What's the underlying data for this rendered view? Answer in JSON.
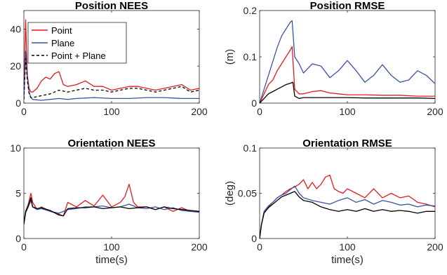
{
  "chart_data": [
    {
      "type": "line",
      "title": "Position NEES",
      "xlabel": "",
      "ylabel": "",
      "xlim": [
        0,
        200
      ],
      "ylim": [
        0,
        50
      ],
      "xticks": [
        0,
        100,
        200
      ],
      "yticks": [
        0,
        20,
        40
      ],
      "legend": {
        "placement": "top-left",
        "entries": [
          "Point",
          "Plane",
          "Point + Plane"
        ]
      },
      "series": [
        {
          "name": "Point",
          "color": "#e41a1c",
          "dash": "solid",
          "x": [
            0,
            2,
            4,
            6,
            8,
            10,
            15,
            20,
            25,
            30,
            35,
            40,
            45,
            50,
            60,
            70,
            80,
            90,
            100,
            110,
            120,
            130,
            140,
            150,
            160,
            170,
            180,
            190,
            200
          ],
          "y": [
            3,
            45,
            15,
            8,
            6,
            6,
            8,
            12,
            14,
            13,
            16,
            17,
            10,
            9,
            10,
            12,
            9,
            9,
            7,
            8,
            9,
            9,
            8,
            7,
            8,
            9,
            10,
            7,
            8
          ]
        },
        {
          "name": "Plane",
          "color": "#3953a4",
          "dash": "solid",
          "x": [
            0,
            2,
            4,
            6,
            8,
            10,
            20,
            30,
            40,
            50,
            60,
            80,
            100,
            120,
            140,
            160,
            180,
            200
          ],
          "y": [
            2,
            28,
            14,
            6,
            3,
            2,
            1.5,
            2,
            2.5,
            2,
            2.5,
            3,
            2.5,
            2.5,
            3,
            3,
            2.5,
            2.5
          ]
        },
        {
          "name": "Point + Plane",
          "color": "#000000",
          "dash": "dashed",
          "x": [
            0,
            2,
            4,
            6,
            8,
            10,
            20,
            30,
            40,
            50,
            60,
            70,
            80,
            90,
            100,
            110,
            120,
            130,
            140,
            150,
            160,
            170,
            180,
            190,
            200
          ],
          "y": [
            2,
            24,
            12,
            5,
            3,
            3,
            4,
            5,
            7,
            6,
            7,
            8,
            7,
            7,
            6,
            7,
            8,
            8,
            7,
            6,
            7,
            8,
            9,
            6,
            7
          ]
        }
      ]
    },
    {
      "type": "line",
      "title": "Position RMSE",
      "xlabel": "",
      "ylabel": "(m)",
      "xlim": [
        0,
        200
      ],
      "ylim": [
        0,
        0.2
      ],
      "xticks": [
        0,
        100,
        200
      ],
      "yticks": [
        0,
        0.1,
        0.2
      ],
      "series": [
        {
          "name": "Point",
          "color": "#e41a1c",
          "dash": "solid",
          "x": [
            0,
            5,
            10,
            15,
            20,
            25,
            30,
            35,
            37,
            40,
            45,
            50,
            60,
            70,
            80,
            90,
            100,
            120,
            140,
            160,
            180,
            200
          ],
          "y": [
            0,
            0.02,
            0.04,
            0.05,
            0.07,
            0.085,
            0.1,
            0.115,
            0.122,
            0.03,
            0.02,
            0.02,
            0.025,
            0.027,
            0.022,
            0.02,
            0.018,
            0.018,
            0.017,
            0.017,
            0.015,
            0.015
          ]
        },
        {
          "name": "Plane",
          "color": "#3953a4",
          "dash": "solid",
          "x": [
            0,
            5,
            10,
            15,
            20,
            25,
            30,
            35,
            37,
            40,
            45,
            50,
            60,
            70,
            80,
            90,
            100,
            110,
            120,
            130,
            140,
            150,
            160,
            170,
            180,
            190,
            200
          ],
          "y": [
            0,
            0.03,
            0.06,
            0.09,
            0.12,
            0.145,
            0.16,
            0.175,
            0.178,
            0.1,
            0.085,
            0.065,
            0.085,
            0.08,
            0.055,
            0.07,
            0.092,
            0.07,
            0.045,
            0.06,
            0.083,
            0.06,
            0.045,
            0.05,
            0.07,
            0.06,
            0.042
          ]
        },
        {
          "name": "Point + Plane",
          "color": "#000000",
          "dash": "solid",
          "x": [
            0,
            5,
            10,
            15,
            20,
            25,
            30,
            35,
            38,
            40,
            45,
            50,
            60,
            80,
            100,
            120,
            140,
            160,
            180,
            200
          ],
          "y": [
            0,
            0.01,
            0.02,
            0.025,
            0.03,
            0.035,
            0.04,
            0.043,
            0.045,
            0.015,
            0.01,
            0.012,
            0.012,
            0.012,
            0.012,
            0.011,
            0.011,
            0.011,
            0.011,
            0.01
          ]
        }
      ]
    },
    {
      "type": "line",
      "title": "Orientation NEES",
      "xlabel": "time(s)",
      "ylabel": "",
      "xlim": [
        0,
        200
      ],
      "ylim": [
        0,
        10
      ],
      "xticks": [
        0,
        100,
        200
      ],
      "yticks": [
        0,
        5,
        10
      ],
      "series": [
        {
          "name": "Point",
          "color": "#e41a1c",
          "dash": "solid",
          "x": [
            0,
            2,
            5,
            8,
            10,
            15,
            20,
            30,
            40,
            45,
            50,
            60,
            70,
            80,
            90,
            100,
            110,
            115,
            120,
            125,
            130,
            140,
            150,
            160,
            170,
            180,
            190,
            200
          ],
          "y": [
            1.8,
            3,
            3.8,
            5,
            4,
            3.2,
            3.5,
            3,
            2.7,
            2.5,
            4,
            3.5,
            4.2,
            3.6,
            4.8,
            3.5,
            4,
            4.6,
            6,
            4,
            3.5,
            3.5,
            3.2,
            3.5,
            3,
            3.4,
            3,
            3
          ]
        },
        {
          "name": "Plane",
          "color": "#3953a4",
          "dash": "solid",
          "x": [
            0,
            2,
            5,
            8,
            10,
            15,
            20,
            30,
            40,
            50,
            60,
            70,
            80,
            90,
            100,
            110,
            120,
            130,
            140,
            150,
            160,
            170,
            180,
            190,
            200
          ],
          "y": [
            1.5,
            2.8,
            3.5,
            4.2,
            3.5,
            3.2,
            3.3,
            3,
            2.8,
            3.2,
            3.3,
            3.5,
            3.5,
            3.6,
            3.4,
            3.5,
            3.8,
            3.4,
            3.3,
            3.5,
            3.2,
            3.4,
            3.1,
            3,
            2.9
          ]
        },
        {
          "name": "Point + Plane",
          "color": "#000000",
          "dash": "solid",
          "x": [
            0,
            2,
            5,
            8,
            10,
            15,
            20,
            30,
            40,
            45,
            50,
            60,
            70,
            80,
            90,
            100,
            110,
            120,
            130,
            140,
            150,
            160,
            170,
            180,
            190,
            200
          ],
          "y": [
            1.6,
            3,
            3.6,
            4.5,
            3.5,
            3.3,
            3.4,
            3.1,
            2.6,
            2.5,
            3.3,
            3.4,
            3.4,
            3.5,
            3.3,
            3.4,
            3.5,
            3.3,
            3.4,
            3.5,
            3.2,
            3.5,
            3.3,
            3.2,
            3.1,
            3
          ]
        }
      ]
    },
    {
      "type": "line",
      "title": "Orientation RMSE",
      "xlabel": "time(s)",
      "ylabel": "(deg)",
      "xlim": [
        0,
        200
      ],
      "ylim": [
        0,
        0.1
      ],
      "xticks": [
        0,
        100,
        200
      ],
      "yticks": [
        0,
        0.05,
        0.1
      ],
      "series": [
        {
          "name": "Point",
          "color": "#e41a1c",
          "dash": "solid",
          "x": [
            0,
            2,
            5,
            10,
            15,
            20,
            25,
            30,
            35,
            40,
            45,
            50,
            55,
            60,
            65,
            70,
            75,
            80,
            85,
            90,
            95,
            100,
            110,
            120,
            130,
            140,
            150,
            160,
            170,
            180,
            190,
            200
          ],
          "y": [
            0,
            0.015,
            0.028,
            0.035,
            0.04,
            0.045,
            0.048,
            0.052,
            0.055,
            0.057,
            0.06,
            0.065,
            0.055,
            0.062,
            0.055,
            0.06,
            0.068,
            0.07,
            0.055,
            0.052,
            0.05,
            0.055,
            0.05,
            0.045,
            0.055,
            0.045,
            0.05,
            0.045,
            0.047,
            0.04,
            0.038,
            0.035
          ]
        },
        {
          "name": "Plane",
          "color": "#3953a4",
          "dash": "solid",
          "x": [
            0,
            2,
            5,
            10,
            15,
            20,
            25,
            30,
            35,
            40,
            45,
            50,
            60,
            70,
            80,
            90,
            100,
            110,
            120,
            130,
            140,
            150,
            160,
            170,
            180,
            190,
            200
          ],
          "y": [
            0,
            0.015,
            0.03,
            0.036,
            0.04,
            0.045,
            0.048,
            0.05,
            0.054,
            0.058,
            0.05,
            0.045,
            0.042,
            0.04,
            0.038,
            0.042,
            0.045,
            0.04,
            0.043,
            0.038,
            0.042,
            0.04,
            0.037,
            0.038,
            0.035,
            0.037,
            0.036
          ]
        },
        {
          "name": "Point + Plane",
          "color": "#000000",
          "dash": "solid",
          "x": [
            0,
            2,
            5,
            10,
            15,
            20,
            25,
            30,
            35,
            40,
            45,
            50,
            60,
            70,
            80,
            90,
            100,
            110,
            120,
            130,
            140,
            150,
            160,
            170,
            180,
            190,
            200
          ],
          "y": [
            0,
            0.015,
            0.028,
            0.034,
            0.038,
            0.042,
            0.046,
            0.048,
            0.05,
            0.052,
            0.046,
            0.042,
            0.04,
            0.035,
            0.032,
            0.03,
            0.032,
            0.03,
            0.033,
            0.03,
            0.032,
            0.03,
            0.031,
            0.03,
            0.028,
            0.03,
            0.03
          ]
        }
      ]
    }
  ]
}
